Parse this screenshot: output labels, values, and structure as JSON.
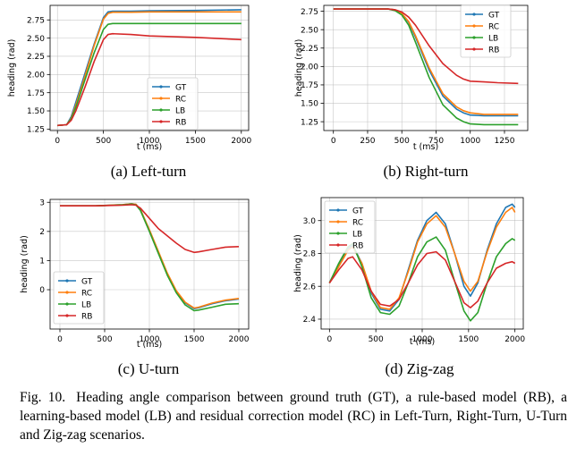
{
  "caption": {
    "label": "Fig. 10.",
    "text": "Heading angle comparison between ground truth (GT), a rule-based model (RB), a learning-based model (LB) and residual correction model (RC) in Left-Turn, Right-Turn, U-Turn and Zig-zag scenarios."
  },
  "colors": {
    "GT": "#1f77b4",
    "RC": "#ff7f0e",
    "LB": "#2ca02c",
    "RB": "#d62728"
  },
  "chart_data": [
    {
      "id": "a",
      "type": "line",
      "caption": "(a) Left-turn",
      "xlabel": "t (ms)",
      "ylabel": "heading (rad)",
      "xlim": [
        -80,
        2080
      ],
      "ylim": [
        1.23,
        2.95
      ],
      "xticks": [
        0,
        500,
        1000,
        1500,
        2000
      ],
      "yticks": [
        1.25,
        1.5,
        1.75,
        2.0,
        2.25,
        2.5,
        2.75
      ],
      "ytick_labels": [
        "1.25",
        "1.50",
        "1.75",
        "2.00",
        "2.25",
        "2.50",
        "2.75"
      ],
      "grid": true,
      "legend": "lower-right",
      "legend_order": [
        "GT",
        "RC",
        "LB",
        "RB"
      ],
      "series": [
        {
          "name": "GT",
          "x": [
            0,
            100,
            150,
            200,
            300,
            400,
            500,
            550,
            600,
            800,
            1000,
            1500,
            2000
          ],
          "y": [
            1.3,
            1.31,
            1.42,
            1.62,
            2.02,
            2.42,
            2.78,
            2.86,
            2.87,
            2.87,
            2.875,
            2.88,
            2.89
          ]
        },
        {
          "name": "RC",
          "x": [
            0,
            100,
            150,
            200,
            300,
            400,
            500,
            550,
            600,
            800,
            1000,
            1500,
            2000
          ],
          "y": [
            1.3,
            1.31,
            1.4,
            1.58,
            1.98,
            2.4,
            2.76,
            2.84,
            2.855,
            2.855,
            2.86,
            2.86,
            2.86
          ]
        },
        {
          "name": "LB",
          "x": [
            0,
            100,
            150,
            200,
            300,
            400,
            500,
            550,
            600,
            800,
            1000,
            1500,
            2000
          ],
          "y": [
            1.3,
            1.31,
            1.39,
            1.55,
            1.93,
            2.3,
            2.62,
            2.69,
            2.7,
            2.7,
            2.7,
            2.7,
            2.7
          ]
        },
        {
          "name": "RB",
          "x": [
            0,
            100,
            150,
            200,
            300,
            400,
            500,
            550,
            600,
            800,
            1000,
            1500,
            2000
          ],
          "y": [
            1.3,
            1.31,
            1.37,
            1.5,
            1.83,
            2.18,
            2.48,
            2.55,
            2.56,
            2.55,
            2.53,
            2.51,
            2.48
          ]
        }
      ]
    },
    {
      "id": "b",
      "type": "line",
      "caption": "(b) Right-turn",
      "xlabel": "t (ms)",
      "ylabel": "heading (rad)",
      "xlim": [
        -70,
        1420
      ],
      "ylim": [
        1.13,
        2.83
      ],
      "xticks": [
        0,
        250,
        500,
        750,
        1000,
        1250
      ],
      "yticks": [
        1.25,
        1.5,
        1.75,
        2.0,
        2.25,
        2.5,
        2.75
      ],
      "ytick_labels": [
        "1.25",
        "1.50",
        "1.75",
        "2.00",
        "2.25",
        "2.50",
        "2.75"
      ],
      "grid": true,
      "legend": "upper-right",
      "legend_order": [
        "GT",
        "RC",
        "LB",
        "RB"
      ],
      "series": [
        {
          "name": "GT",
          "x": [
            0,
            400,
            450,
            500,
            550,
            600,
            700,
            800,
            900,
            950,
            1000,
            1100,
            1200,
            1350
          ],
          "y": [
            2.78,
            2.78,
            2.77,
            2.72,
            2.6,
            2.4,
            1.95,
            1.6,
            1.42,
            1.37,
            1.34,
            1.33,
            1.33,
            1.33
          ]
        },
        {
          "name": "RC",
          "x": [
            0,
            400,
            450,
            500,
            550,
            600,
            700,
            800,
            900,
            950,
            1000,
            1100,
            1200,
            1350
          ],
          "y": [
            2.78,
            2.78,
            2.77,
            2.72,
            2.61,
            2.42,
            1.98,
            1.63,
            1.45,
            1.4,
            1.37,
            1.35,
            1.35,
            1.35
          ]
        },
        {
          "name": "LB",
          "x": [
            0,
            400,
            450,
            500,
            550,
            600,
            700,
            800,
            900,
            950,
            1000,
            1100,
            1200,
            1350
          ],
          "y": [
            2.78,
            2.78,
            2.76,
            2.7,
            2.56,
            2.33,
            1.85,
            1.48,
            1.3,
            1.25,
            1.22,
            1.21,
            1.21,
            1.21
          ]
        },
        {
          "name": "RB",
          "x": [
            0,
            400,
            450,
            500,
            550,
            600,
            700,
            800,
            900,
            950,
            1000,
            1100,
            1200,
            1350
          ],
          "y": [
            2.78,
            2.78,
            2.77,
            2.74,
            2.67,
            2.56,
            2.28,
            2.04,
            1.88,
            1.83,
            1.8,
            1.79,
            1.78,
            1.77
          ]
        }
      ]
    },
    {
      "id": "c",
      "type": "line",
      "caption": "(c) U-turn",
      "xlabel": "t (ms)",
      "ylabel": "heading (rad)",
      "xlim": [
        -110,
        2110
      ],
      "ylim": [
        -1.35,
        3.1
      ],
      "xticks": [
        0,
        500,
        1000,
        1500,
        2000
      ],
      "yticks": [
        0,
        1,
        2,
        3
      ],
      "ytick_labels": [
        "0",
        "1",
        "2",
        "3"
      ],
      "grid": true,
      "legend": "lower-left",
      "legend_order": [
        "GT",
        "RC",
        "LB",
        "RB"
      ],
      "series": [
        {
          "name": "GT",
          "x": [
            0,
            400,
            700,
            800,
            850,
            900,
            1000,
            1100,
            1200,
            1300,
            1400,
            1500,
            1550,
            1700,
            1850,
            2000
          ],
          "y": [
            2.88,
            2.88,
            2.92,
            2.95,
            2.93,
            2.75,
            2.05,
            1.3,
            0.55,
            -0.05,
            -0.45,
            -0.65,
            -0.62,
            -0.48,
            -0.38,
            -0.32
          ]
        },
        {
          "name": "RC",
          "x": [
            0,
            400,
            700,
            800,
            850,
            900,
            1000,
            1100,
            1200,
            1300,
            1400,
            1500,
            1550,
            1700,
            1850,
            2000
          ],
          "y": [
            2.88,
            2.88,
            2.92,
            2.95,
            2.93,
            2.75,
            2.06,
            1.32,
            0.57,
            -0.03,
            -0.43,
            -0.63,
            -0.6,
            -0.46,
            -0.36,
            -0.3
          ]
        },
        {
          "name": "LB",
          "x": [
            0,
            400,
            700,
            800,
            850,
            900,
            1000,
            1100,
            1200,
            1300,
            1400,
            1500,
            1550,
            1700,
            1850,
            2000
          ],
          "y": [
            2.88,
            2.88,
            2.91,
            2.94,
            2.91,
            2.72,
            2.0,
            1.25,
            0.5,
            -0.1,
            -0.52,
            -0.72,
            -0.7,
            -0.6,
            -0.5,
            -0.48
          ]
        },
        {
          "name": "RB",
          "x": [
            0,
            400,
            700,
            800,
            850,
            900,
            1000,
            1100,
            1200,
            1300,
            1400,
            1500,
            1550,
            1700,
            1850,
            2000
          ],
          "y": [
            2.88,
            2.88,
            2.9,
            2.92,
            2.9,
            2.8,
            2.45,
            2.1,
            1.85,
            1.6,
            1.38,
            1.28,
            1.3,
            1.38,
            1.46,
            1.48
          ]
        }
      ]
    },
    {
      "id": "d",
      "type": "line",
      "caption": "(d) Zig-zag",
      "xlabel": "t (ms)",
      "ylabel": "heading (rad)",
      "xlim": [
        -90,
        2090
      ],
      "ylim": [
        2.34,
        3.14
      ],
      "xticks": [
        0,
        500,
        1000,
        1500,
        2000
      ],
      "yticks": [
        2.4,
        2.6,
        2.8,
        3.0
      ],
      "ytick_labels": [
        "2.4",
        "2.6",
        "2.8",
        "3.0"
      ],
      "grid": true,
      "legend": "upper-left",
      "legend_order": [
        "GT",
        "RC",
        "LB",
        "RB"
      ],
      "series": [
        {
          "name": "GT",
          "x": [
            0,
            100,
            200,
            250,
            350,
            450,
            550,
            650,
            750,
            850,
            950,
            1050,
            1150,
            1250,
            1350,
            1450,
            1520,
            1600,
            1700,
            1800,
            1900,
            1970,
            2000
          ],
          "y": [
            2.62,
            2.73,
            2.83,
            2.85,
            2.74,
            2.56,
            2.46,
            2.45,
            2.52,
            2.7,
            2.88,
            3.0,
            3.05,
            2.98,
            2.8,
            2.6,
            2.54,
            2.62,
            2.82,
            2.98,
            3.08,
            3.1,
            3.08
          ]
        },
        {
          "name": "RC",
          "x": [
            0,
            100,
            200,
            250,
            350,
            450,
            550,
            650,
            750,
            850,
            950,
            1050,
            1150,
            1250,
            1350,
            1450,
            1520,
            1600,
            1700,
            1800,
            1900,
            1970,
            2000
          ],
          "y": [
            2.62,
            2.72,
            2.82,
            2.84,
            2.74,
            2.57,
            2.47,
            2.46,
            2.53,
            2.69,
            2.87,
            2.98,
            3.03,
            2.96,
            2.8,
            2.63,
            2.57,
            2.63,
            2.81,
            2.96,
            3.05,
            3.08,
            3.05
          ]
        },
        {
          "name": "LB",
          "x": [
            0,
            100,
            200,
            250,
            350,
            450,
            550,
            650,
            750,
            850,
            950,
            1050,
            1150,
            1250,
            1350,
            1450,
            1520,
            1600,
            1700,
            1800,
            1900,
            1970,
            2000
          ],
          "y": [
            2.62,
            2.74,
            2.84,
            2.86,
            2.72,
            2.53,
            2.44,
            2.43,
            2.48,
            2.62,
            2.78,
            2.87,
            2.9,
            2.82,
            2.63,
            2.45,
            2.39,
            2.44,
            2.62,
            2.78,
            2.86,
            2.89,
            2.88
          ]
        },
        {
          "name": "RB",
          "x": [
            0,
            100,
            200,
            250,
            350,
            450,
            550,
            650,
            750,
            850,
            950,
            1050,
            1150,
            1250,
            1350,
            1450,
            1520,
            1600,
            1700,
            1800,
            1900,
            1970,
            2000
          ],
          "y": [
            2.62,
            2.7,
            2.77,
            2.78,
            2.7,
            2.57,
            2.49,
            2.48,
            2.52,
            2.62,
            2.73,
            2.8,
            2.81,
            2.76,
            2.63,
            2.5,
            2.47,
            2.51,
            2.62,
            2.71,
            2.74,
            2.75,
            2.74
          ]
        }
      ]
    }
  ]
}
